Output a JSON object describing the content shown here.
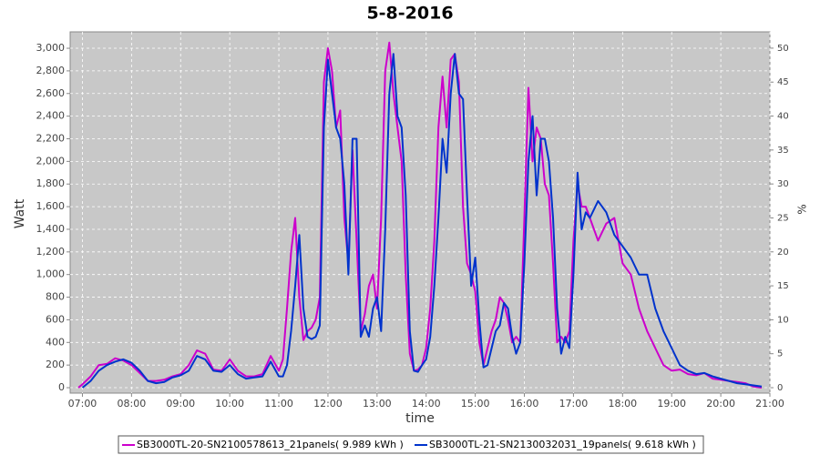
{
  "chart_data": {
    "type": "line",
    "title": "5-8-2016",
    "xlabel": "time",
    "ylabel": "Watt",
    "y2label": "%",
    "xlim": [
      "06:45",
      "21:00"
    ],
    "xticks": [
      "07:00",
      "08:00",
      "09:00",
      "10:00",
      "11:00",
      "12:00",
      "13:00",
      "14:00",
      "15:00",
      "16:00",
      "17:00",
      "18:00",
      "19:00",
      "20:00",
      "21:00"
    ],
    "ylim": [
      -48,
      3145
    ],
    "yticks": [
      0,
      200,
      400,
      600,
      800,
      {
        "value": 1000,
        "label": "1,000"
      },
      {
        "value": 1200,
        "label": "1,200"
      },
      {
        "value": 1400,
        "label": "1,400"
      },
      {
        "value": 1600,
        "label": "1,600"
      },
      {
        "value": 1800,
        "label": "1,800"
      },
      {
        "value": 2000,
        "label": "2,000"
      },
      {
        "value": 2200,
        "label": "2,200"
      },
      {
        "value": 2400,
        "label": "2,400"
      },
      {
        "value": 2600,
        "label": "2,600"
      },
      {
        "value": 2800,
        "label": "2,800"
      },
      {
        "value": 3000,
        "label": "3,000"
      }
    ],
    "y2lim": [
      -0.8,
      52.4
    ],
    "y2ticks": [
      0,
      5,
      10,
      15,
      20,
      25,
      30,
      35,
      40,
      45,
      50
    ],
    "grid": true,
    "legend": "bottom",
    "x": [
      "06:55",
      "07:00",
      "07:10",
      "07:20",
      "07:30",
      "07:40",
      "07:50",
      "08:00",
      "08:10",
      "08:20",
      "08:30",
      "08:40",
      "08:50",
      "09:00",
      "09:10",
      "09:20",
      "09:30",
      "09:40",
      "09:50",
      "10:00",
      "10:10",
      "10:20",
      "10:30",
      "10:40",
      "10:50",
      "11:00",
      "11:05",
      "11:10",
      "11:15",
      "11:20",
      "11:25",
      "11:30",
      "11:35",
      "11:40",
      "11:45",
      "11:50",
      "11:55",
      "12:00",
      "12:05",
      "12:10",
      "12:15",
      "12:20",
      "12:25",
      "12:30",
      "12:35",
      "12:40",
      "12:45",
      "12:50",
      "12:55",
      "13:00",
      "13:05",
      "13:10",
      "13:15",
      "13:20",
      "13:25",
      "13:30",
      "13:35",
      "13:40",
      "13:45",
      "13:50",
      "13:55",
      "14:00",
      "14:05",
      "14:10",
      "14:15",
      "14:20",
      "14:25",
      "14:30",
      "14:35",
      "14:40",
      "14:45",
      "14:50",
      "14:55",
      "15:00",
      "15:05",
      "15:10",
      "15:15",
      "15:20",
      "15:25",
      "15:30",
      "15:35",
      "15:40",
      "15:45",
      "15:50",
      "15:55",
      "16:00",
      "16:05",
      "16:10",
      "16:15",
      "16:20",
      "16:25",
      "16:30",
      "16:35",
      "16:40",
      "16:45",
      "16:50",
      "16:55",
      "17:00",
      "17:05",
      "17:10",
      "17:15",
      "17:20",
      "17:30",
      "17:40",
      "17:50",
      "18:00",
      "18:10",
      "18:20",
      "18:30",
      "18:40",
      "18:50",
      "19:00",
      "19:10",
      "19:20",
      "19:30",
      "19:40",
      "19:50",
      "20:00",
      "20:10",
      "20:20",
      "20:30",
      "20:40",
      "20:50"
    ],
    "series": [
      {
        "name": "SB3000TL-20-SN2100578613_21panels( 9.989 kWh )",
        "color": "#cc00cc",
        "values": [
          0,
          30,
          100,
          200,
          210,
          260,
          240,
          200,
          130,
          60,
          60,
          70,
          100,
          120,
          200,
          330,
          300,
          160,
          150,
          250,
          150,
          100,
          100,
          120,
          280,
          150,
          250,
          700,
          1200,
          1500,
          800,
          420,
          500,
          530,
          600,
          800,
          2700,
          3000,
          2800,
          2300,
          2450,
          1500,
          1100,
          2100,
          1300,
          500,
          650,
          900,
          1000,
          700,
          1500,
          2800,
          3050,
          2600,
          2300,
          2000,
          1000,
          300,
          150,
          160,
          200,
          350,
          700,
          1300,
          2300,
          2750,
          2300,
          2900,
          2950,
          2700,
          1600,
          1100,
          1000,
          850,
          400,
          200,
          350,
          500,
          600,
          800,
          750,
          600,
          400,
          450,
          400,
          1500,
          2650,
          2000,
          2300,
          2200,
          1800,
          1700,
          1100,
          400,
          450,
          400,
          500,
          1300,
          1800,
          1600,
          1600,
          1500,
          1300,
          1450,
          1500,
          1100,
          1000,
          700,
          500,
          350,
          200,
          150,
          160,
          120,
          110,
          130,
          80,
          70,
          60,
          50,
          40,
          10,
          0
        ]
      },
      {
        "name": "SB3000TL-21-SN2130032031_19panels( 9.618 kWh )",
        "color": "#0033cc",
        "values": [
          null,
          0,
          60,
          150,
          200,
          230,
          250,
          220,
          150,
          60,
          40,
          50,
          90,
          110,
          150,
          280,
          250,
          150,
          140,
          200,
          120,
          80,
          90,
          100,
          230,
          100,
          100,
          200,
          500,
          900,
          1350,
          700,
          450,
          430,
          450,
          550,
          2300,
          2900,
          2600,
          2300,
          2200,
          1800,
          1000,
          2200,
          2200,
          450,
          550,
          450,
          700,
          800,
          500,
          1400,
          2600,
          2950,
          2400,
          2300,
          1700,
          500,
          150,
          140,
          200,
          250,
          450,
          900,
          1500,
          2200,
          1900,
          2600,
          2950,
          2600,
          2550,
          1700,
          900,
          1150,
          600,
          180,
          200,
          350,
          500,
          550,
          750,
          700,
          450,
          300,
          400,
          1100,
          2000,
          2400,
          1700,
          2200,
          2200,
          2000,
          1500,
          700,
          300,
          450,
          350,
          1000,
          1900,
          1400,
          1550,
          1500,
          1650,
          1550,
          1350,
          1250,
          1150,
          1000,
          1000,
          700,
          500,
          350,
          200,
          150,
          120,
          130,
          100,
          80,
          60,
          40,
          30,
          20,
          10
        ]
      }
    ]
  }
}
